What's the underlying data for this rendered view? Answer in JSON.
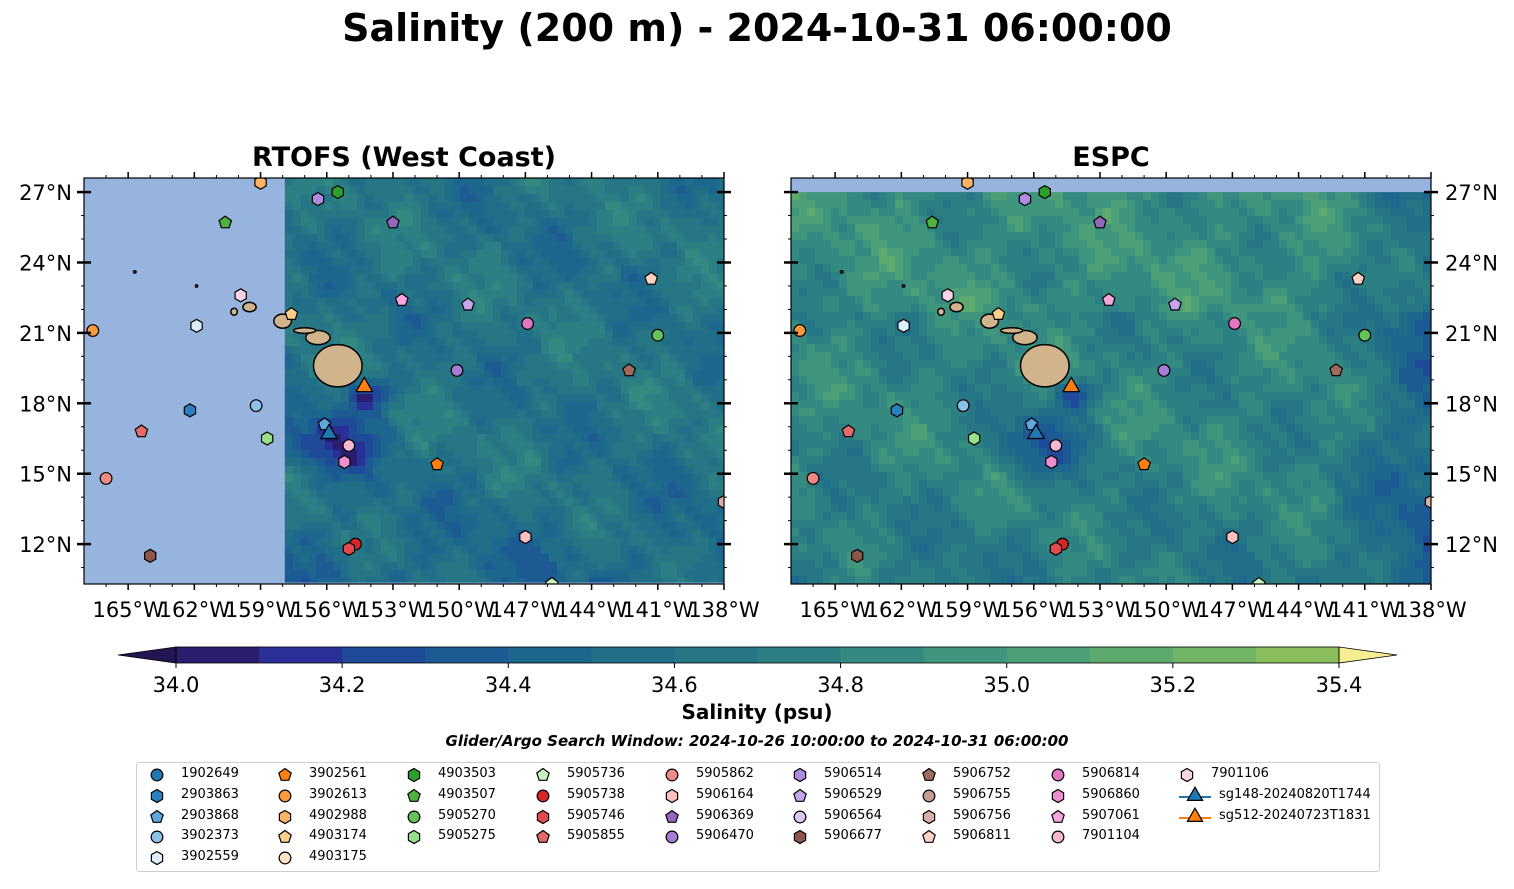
{
  "figure": {
    "title": "Salinity (200 m) - 2024-10-31 06:00:00",
    "colorbar_label": "Salinity (psu)",
    "search_window": "Glider/Argo Search Window: 2024-10-26 10:00:00 to 2024-10-31 06:00:00"
  },
  "chart_data": [
    {
      "type": "heatmap",
      "title": "RTOFS (West Coast)",
      "xlabel": "",
      "ylabel": "",
      "xlim": [
        -167,
        -138
      ],
      "ylim": [
        10.3,
        27.6
      ],
      "x_ticks": [
        "165°W",
        "162°W",
        "159°W",
        "156°W",
        "153°W",
        "150°W",
        "147°W",
        "144°W",
        "141°W",
        "138°W"
      ],
      "y_ticks": [
        "12°N",
        "15°N",
        "18°N",
        "21°N",
        "24°N",
        "27°N"
      ],
      "y_tick_side": "left",
      "domain_west_lon": -157.9,
      "domain_south_lat": 10.3
    },
    {
      "type": "heatmap",
      "title": "ESPC",
      "xlabel": "",
      "ylabel": "",
      "xlim": [
        -167,
        -138
      ],
      "ylim": [
        10.3,
        27.6
      ],
      "x_ticks": [
        "165°W",
        "162°W",
        "159°W",
        "156°W",
        "153°W",
        "150°W",
        "147°W",
        "144°W",
        "141°W",
        "138°W"
      ],
      "y_ticks": [
        "12°N",
        "15°N",
        "18°N",
        "21°N",
        "24°N",
        "27°N"
      ],
      "y_tick_side": "right",
      "domain_north_lat": 27.0
    }
  ],
  "colorbar": {
    "min": 34.0,
    "max": 35.4,
    "step": 0.1,
    "ticks": [
      "34.0",
      "34.2",
      "34.4",
      "34.6",
      "34.8",
      "35.0",
      "35.2",
      "35.4"
    ],
    "colors": [
      "#2a1d6e",
      "#2b2f98",
      "#1f4a99",
      "#1b5a93",
      "#1d668d",
      "#216e88",
      "#267685",
      "#2c8084",
      "#348a81",
      "#3f957d",
      "#4d9f77",
      "#5daa6f",
      "#72b466",
      "#8bbe5c",
      "#a8c855",
      "#c6d35a",
      "#f3ed8c"
    ],
    "extend_low_color": "#23154f",
    "extend_high_color": "#f6ee91"
  },
  "map_colors": {
    "land": "#d2b48c",
    "no_data": "#97b4df",
    "ocean_base": "#2f7d86"
  },
  "floats": [
    {
      "id": "1902649",
      "marker": "circle",
      "color": "#1f77b4",
      "lon": null,
      "lat": null
    },
    {
      "id": "2903863",
      "marker": "hexagon",
      "color": "#2a7fc1",
      "lon": -162.2,
      "lat": 17.7
    },
    {
      "id": "2903868",
      "marker": "pentagon",
      "color": "#5fa7dd",
      "lon": -156.1,
      "lat": 17.1
    },
    {
      "id": "3902373",
      "marker": "circle",
      "color": "#8cc1ea",
      "lon": -159.2,
      "lat": 17.9
    },
    {
      "id": "3902559",
      "marker": "hexagon",
      "color": "#dbeefa",
      "lon": -161.9,
      "lat": 21.3
    },
    {
      "id": "3902561",
      "marker": "pentagon",
      "color": "#ff7f0e",
      "lon": -151.0,
      "lat": 15.4
    },
    {
      "id": "3902613",
      "marker": "circle",
      "color": "#ff9a3c",
      "lon": -166.6,
      "lat": 21.1
    },
    {
      "id": "4902988",
      "marker": "hexagon",
      "color": "#ffb366",
      "lon": -159.0,
      "lat": 27.4
    },
    {
      "id": "4903174",
      "marker": "pentagon",
      "color": "#ffcf8a",
      "lon": -157.6,
      "lat": 21.8
    },
    {
      "id": "4903175",
      "marker": "circle",
      "color": "#ffe3c4",
      "lon": null,
      "lat": null
    },
    {
      "id": "4903503",
      "marker": "hexagon",
      "color": "#2ca02c",
      "lon": -155.5,
      "lat": 27.0
    },
    {
      "id": "4903507",
      "marker": "pentagon",
      "color": "#4fb13f",
      "lon": -160.6,
      "lat": 25.7
    },
    {
      "id": "5905270",
      "marker": "circle",
      "color": "#66c35a",
      "lon": -141.0,
      "lat": 20.9
    },
    {
      "id": "5905275",
      "marker": "hexagon",
      "color": "#98df8a",
      "lon": -158.7,
      "lat": 16.5
    },
    {
      "id": "5905736",
      "marker": "pentagon",
      "color": "#c8f2bd",
      "lon": -145.8,
      "lat": 10.3
    },
    {
      "id": "5905738",
      "marker": "circle",
      "color": "#d62728",
      "lon": -154.7,
      "lat": 12.0
    },
    {
      "id": "5905746",
      "marker": "hexagon",
      "color": "#e04a4b",
      "lon": -155.0,
      "lat": 11.8
    },
    {
      "id": "5905855",
      "marker": "pentagon",
      "color": "#e56b6b",
      "lon": -164.4,
      "lat": 16.8
    },
    {
      "id": "5905862",
      "marker": "circle",
      "color": "#f08a85",
      "lon": -166.0,
      "lat": 14.8
    },
    {
      "id": "5906164",
      "marker": "hexagon",
      "color": "#ffc0c0",
      "lon": -147.0,
      "lat": 12.3
    },
    {
      "id": "5906369",
      "marker": "pentagon",
      "color": "#9467bd",
      "lon": -153.0,
      "lat": 25.7
    },
    {
      "id": "5906470",
      "marker": "circle",
      "color": "#a57cd6",
      "lon": -150.1,
      "lat": 19.4
    },
    {
      "id": "5906514",
      "marker": "hexagon",
      "color": "#b08be0",
      "lon": -156.4,
      "lat": 26.7
    },
    {
      "id": "5906529",
      "marker": "pentagon",
      "color": "#c5a6ec",
      "lon": -149.6,
      "lat": 22.2
    },
    {
      "id": "5906564",
      "marker": "circle",
      "color": "#dcc6f6",
      "lon": null,
      "lat": null
    },
    {
      "id": "5906677",
      "marker": "hexagon",
      "color": "#8c564b",
      "lon": -164.0,
      "lat": 11.5
    },
    {
      "id": "5906752",
      "marker": "pentagon",
      "color": "#a06a5c",
      "lon": -142.3,
      "lat": 19.4
    },
    {
      "id": "5906755",
      "marker": "circle",
      "color": "#c49c94",
      "lon": null,
      "lat": null
    },
    {
      "id": "5906756",
      "marker": "hexagon",
      "color": "#d9b0a6",
      "lon": -138.0,
      "lat": 13.8
    },
    {
      "id": "5906811",
      "marker": "pentagon",
      "color": "#ffd3c4",
      "lon": -141.3,
      "lat": 23.3
    },
    {
      "id": "5906814",
      "marker": "circle",
      "color": "#e377c2",
      "lon": -146.9,
      "lat": 21.4
    },
    {
      "id": "5906860",
      "marker": "hexagon",
      "color": "#ec8fd0",
      "lon": -155.2,
      "lat": 15.5
    },
    {
      "id": "5907061",
      "marker": "pentagon",
      "color": "#f5a6dc",
      "lon": -152.6,
      "lat": 22.4
    },
    {
      "id": "7901104",
      "marker": "circle",
      "color": "#f7b6d2",
      "lon": -155.0,
      "lat": 16.2
    },
    {
      "id": "7901106",
      "marker": "hexagon",
      "color": "#fbd3e6",
      "lon": -159.9,
      "lat": 22.6
    }
  ],
  "gliders": [
    {
      "id": "sg148-20240820T1744",
      "marker": "triangle",
      "color": "#1f77b4",
      "lon": -155.9,
      "lat": 16.7
    },
    {
      "id": "sg512-20240723T1831",
      "marker": "triangle",
      "color": "#ff7f0e",
      "lon": -154.3,
      "lat": 18.7
    }
  ]
}
